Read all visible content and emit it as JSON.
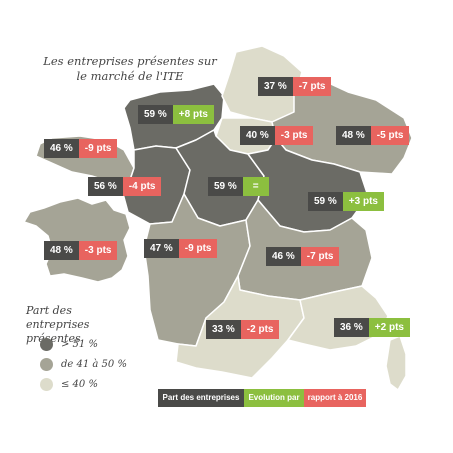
{
  "title": "Les entreprises présentes sur le marché de l'ITE",
  "colors": {
    "high": "#6b6b65",
    "mid": "#a5a496",
    "low": "#dddccb",
    "dark_badge": "#4a4a48",
    "positive": "#8cbf3f",
    "negative": "#e8645f"
  },
  "regions": [
    {
      "name": "Hauts-de-France",
      "share": "37 %",
      "evolution": "-7 pts",
      "trend": "neg",
      "category": "low"
    },
    {
      "name": "Normandie",
      "share": "59 %",
      "evolution": "+8 pts",
      "trend": "pos",
      "category": "high"
    },
    {
      "name": "Île-de-France",
      "share": "40 %",
      "evolution": "-3 pts",
      "trend": "neg",
      "category": "low"
    },
    {
      "name": "Grand Est",
      "share": "48 %",
      "evolution": "-5 pts",
      "trend": "neg",
      "category": "mid"
    },
    {
      "name": "Bretagne",
      "share": "46 %",
      "evolution": "-9 pts",
      "trend": "neg",
      "category": "mid"
    },
    {
      "name": "Pays de la Loire",
      "share": "56 %",
      "evolution": "-4 pts",
      "trend": "neg",
      "category": "high"
    },
    {
      "name": "Centre-Val de Loire",
      "share": "59 %",
      "evolution": "=",
      "trend": "pos",
      "category": "high"
    },
    {
      "name": "Bourgogne-Franche-Comté",
      "share": "59 %",
      "evolution": "+3 pts",
      "trend": "pos",
      "category": "high"
    },
    {
      "name": "Nouvelle-Aquitaine",
      "share": "47 %",
      "evolution": "-9 pts",
      "trend": "neg",
      "category": "mid"
    },
    {
      "name": "Auvergne-Rhône-Alpes",
      "share": "46 %",
      "evolution": "-7 pts",
      "trend": "neg",
      "category": "mid"
    },
    {
      "name": "Occitanie",
      "share": "33 %",
      "evolution": "-2 pts",
      "trend": "neg",
      "category": "low"
    },
    {
      "name": "Provence-Alpes-Côte d'Azur",
      "share": "36 %",
      "evolution": "+2 pts",
      "trend": "pos",
      "category": "low"
    },
    {
      "name": "France",
      "share": "48 %",
      "evolution": "-3 pts",
      "trend": "neg",
      "category": "mid"
    }
  ],
  "legend": {
    "title": "Part des entreprises présentes",
    "items": [
      {
        "label": "> 51 %",
        "category": "high"
      },
      {
        "label": "de 41 à 50 %",
        "category": "mid"
      },
      {
        "label": "≤ 40 %",
        "category": "low"
      }
    ]
  },
  "key": {
    "share": "Part des entreprises",
    "evolution_a": "Evolution par",
    "evolution_b": "rapport à 2016"
  }
}
